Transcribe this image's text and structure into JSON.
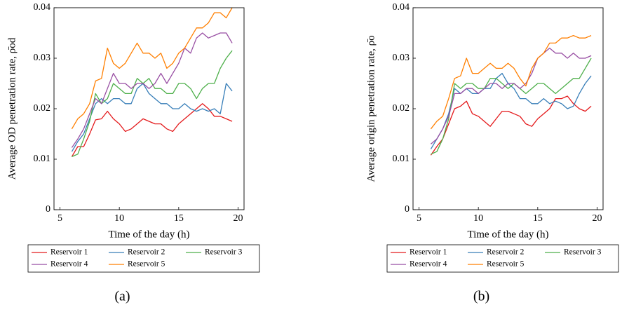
{
  "chart_data": [
    {
      "type": "line",
      "caption": "(a)",
      "xlabel": "Time of the day (h)",
      "ylabel": "Average OD penetration rate, ρ̄od",
      "x": [
        6,
        6.5,
        7,
        7.5,
        8,
        8.5,
        9,
        9.5,
        10,
        10.5,
        11,
        11.5,
        12,
        12.5,
        13,
        13.5,
        14,
        14.5,
        15,
        15.5,
        16,
        16.5,
        17,
        17.5,
        18,
        18.5,
        19,
        19.5
      ],
      "xlim": [
        4.5,
        20.5
      ],
      "xticks": [
        5,
        10,
        15,
        20
      ],
      "ylim": [
        0,
        0.04
      ],
      "yticks": [
        0,
        0.01,
        0.02,
        0.03,
        0.04
      ],
      "legend": "below",
      "series": [
        {
          "name": "Reservoir 1",
          "color": "#e41a1c",
          "values": [
            0.0105,
            0.0125,
            0.0125,
            0.015,
            0.0178,
            0.018,
            0.0195,
            0.018,
            0.017,
            0.0155,
            0.016,
            0.017,
            0.018,
            0.0175,
            0.017,
            0.017,
            0.016,
            0.0155,
            0.017,
            0.018,
            0.019,
            0.02,
            0.021,
            0.02,
            0.0185,
            0.0185,
            0.018,
            0.0175
          ]
        },
        {
          "name": "Reservoir 2",
          "color": "#377eb8",
          "values": [
            0.0115,
            0.0135,
            0.015,
            0.018,
            0.021,
            0.022,
            0.021,
            0.022,
            0.022,
            0.021,
            0.021,
            0.024,
            0.025,
            0.023,
            0.022,
            0.021,
            0.021,
            0.02,
            0.02,
            0.021,
            0.02,
            0.0195,
            0.02,
            0.0195,
            0.02,
            0.019,
            0.025,
            0.0235
          ]
        },
        {
          "name": "Reservoir 3",
          "color": "#4daf4a",
          "values": [
            0.0105,
            0.011,
            0.014,
            0.0175,
            0.023,
            0.021,
            0.022,
            0.025,
            0.024,
            0.023,
            0.023,
            0.026,
            0.025,
            0.026,
            0.024,
            0.024,
            0.023,
            0.023,
            0.025,
            0.025,
            0.024,
            0.022,
            0.024,
            0.025,
            0.025,
            0.028,
            0.03,
            0.0315
          ]
        },
        {
          "name": "Reservoir 4",
          "color": "#984ea3",
          "values": [
            0.0123,
            0.014,
            0.016,
            0.019,
            0.022,
            0.021,
            0.024,
            0.027,
            0.025,
            0.025,
            0.024,
            0.025,
            0.025,
            0.024,
            0.025,
            0.027,
            0.025,
            0.027,
            0.029,
            0.032,
            0.031,
            0.034,
            0.035,
            0.034,
            0.0345,
            0.035,
            0.035,
            0.033
          ]
        },
        {
          "name": "Reservoir 5",
          "color": "#ff7f00",
          "values": [
            0.016,
            0.018,
            0.019,
            0.021,
            0.0255,
            0.026,
            0.032,
            0.029,
            0.028,
            0.029,
            0.031,
            0.033,
            0.031,
            0.031,
            0.03,
            0.031,
            0.028,
            0.029,
            0.031,
            0.032,
            0.034,
            0.036,
            0.036,
            0.037,
            0.039,
            0.039,
            0.038,
            0.04
          ]
        }
      ]
    },
    {
      "type": "line",
      "caption": "(b)",
      "xlabel": "Time of the day (h)",
      "ylabel": "Average origin penetration rate, ρ̄o",
      "x": [
        6,
        6.5,
        7,
        7.5,
        8,
        8.5,
        9,
        9.5,
        10,
        10.5,
        11,
        11.5,
        12,
        12.5,
        13,
        13.5,
        14,
        14.5,
        15,
        15.5,
        16,
        16.5,
        17,
        17.5,
        18,
        18.5,
        19,
        19.5
      ],
      "xlim": [
        4.5,
        20.5
      ],
      "xticks": [
        5,
        10,
        15,
        20
      ],
      "ylim": [
        0,
        0.04
      ],
      "yticks": [
        0,
        0.01,
        0.02,
        0.03,
        0.04
      ],
      "legend": "below",
      "series": [
        {
          "name": "Reservoir 1",
          "color": "#e41a1c",
          "values": [
            0.0108,
            0.0125,
            0.014,
            0.017,
            0.02,
            0.0205,
            0.0215,
            0.019,
            0.0185,
            0.0175,
            0.0165,
            0.018,
            0.0195,
            0.0195,
            0.019,
            0.0185,
            0.017,
            0.0165,
            0.018,
            0.019,
            0.02,
            0.022,
            0.022,
            0.0225,
            0.021,
            0.02,
            0.0195,
            0.0205
          ]
        },
        {
          "name": "Reservoir 2",
          "color": "#377eb8",
          "values": [
            0.012,
            0.014,
            0.016,
            0.019,
            0.024,
            0.023,
            0.024,
            0.023,
            0.023,
            0.024,
            0.024,
            0.026,
            0.027,
            0.025,
            0.024,
            0.022,
            0.022,
            0.021,
            0.021,
            0.022,
            0.021,
            0.0215,
            0.021,
            0.02,
            0.0205,
            0.023,
            0.025,
            0.0265
          ]
        },
        {
          "name": "Reservoir 3",
          "color": "#4daf4a",
          "values": [
            0.011,
            0.0115,
            0.014,
            0.018,
            0.025,
            0.024,
            0.025,
            0.025,
            0.024,
            0.024,
            0.026,
            0.026,
            0.025,
            0.024,
            0.025,
            0.024,
            0.023,
            0.024,
            0.025,
            0.025,
            0.024,
            0.023,
            0.024,
            0.025,
            0.026,
            0.026,
            0.028,
            0.03
          ]
        },
        {
          "name": "Reservoir 4",
          "color": "#984ea3",
          "values": [
            0.013,
            0.014,
            0.016,
            0.0185,
            0.023,
            0.023,
            0.024,
            0.024,
            0.023,
            0.024,
            0.025,
            0.025,
            0.024,
            0.025,
            0.025,
            0.024,
            0.025,
            0.027,
            0.03,
            0.031,
            0.032,
            0.031,
            0.031,
            0.03,
            0.031,
            0.03,
            0.03,
            0.0305
          ]
        },
        {
          "name": "Reservoir 5",
          "color": "#ff7f00",
          "values": [
            0.016,
            0.0175,
            0.0185,
            0.022,
            0.026,
            0.0265,
            0.03,
            0.027,
            0.027,
            0.028,
            0.029,
            0.028,
            0.028,
            0.029,
            0.028,
            0.026,
            0.0245,
            0.028,
            0.03,
            0.031,
            0.033,
            0.033,
            0.034,
            0.034,
            0.0345,
            0.034,
            0.034,
            0.0345
          ]
        }
      ]
    }
  ]
}
